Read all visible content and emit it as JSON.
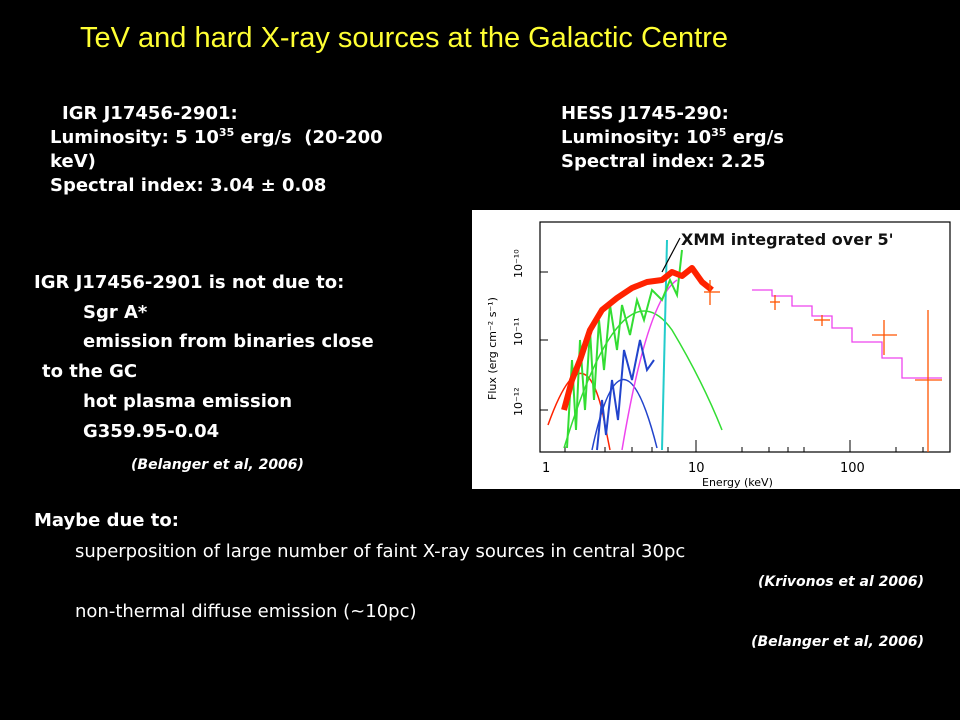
{
  "title": "TeV and hard X-ray sources at the Galactic Centre",
  "igr": {
    "name": "IGR J17456-2901:",
    "lum_prefix": "Luminosity: 5 10",
    "lum_exp": "35",
    "lum_suffix": " erg/s  (20-200",
    "lum_cont": "keV)",
    "spectral_index": "Spectral index: 3.04 ± 0.08"
  },
  "hess": {
    "name": "HESS J1745-290:",
    "lum_prefix": "Luminosity: 10",
    "lum_exp": "35",
    "lum_suffix": " erg/s",
    "spectral_index": "Spectral index: 2.25"
  },
  "not_due": {
    "heading": "IGR J17456-2901 is not due to:",
    "items": [
      "Sgr A*",
      "emission from binaries close",
      "to the GC",
      "hot plasma emission",
      "G359.95-0.04"
    ],
    "cite": "(Belanger et al, 2006)"
  },
  "maybe": {
    "heading": "Maybe due to:",
    "item1": "superposition of large number of faint X-ray sources in central 30pc",
    "cite1": "(Krivonos et al 2006)",
    "item2": "non-thermal diffuse emission (~10pc)",
    "cite2": "(Belanger et al, 2006)"
  },
  "plot": {
    "annotation": "XMM integrated over 5'",
    "xlabel": "Energy (keV)",
    "ylabel": "Flux (erg cm⁻² s⁻¹)",
    "xticks": [
      "1",
      "10",
      "100"
    ],
    "yticks": [
      "10⁻¹²",
      "10⁻¹¹",
      "10⁻¹⁰"
    ],
    "colors": {
      "data": "#ff2200",
      "model": "#33dd33",
      "blue": "#2244cc",
      "cyan": "#22cccc",
      "magenta": "#ee44ee"
    }
  }
}
